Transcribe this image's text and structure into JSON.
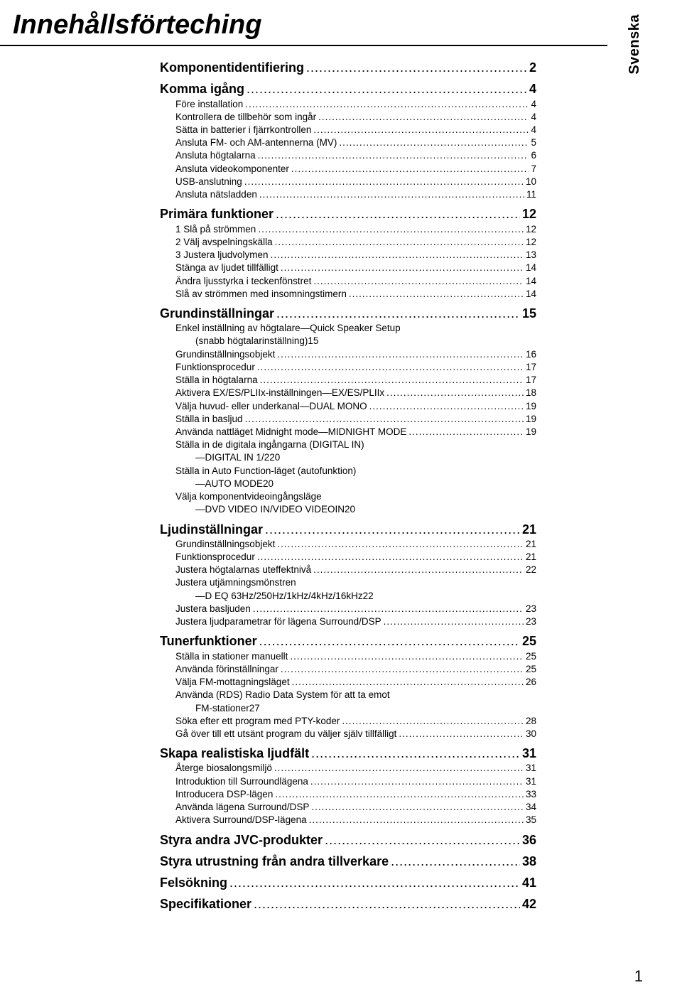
{
  "title": "Innehållsförteching",
  "side_label": "Svenska",
  "page_number": "1",
  "toc": [
    {
      "level": 1,
      "label": "Komponentidentifiering",
      "page": "2"
    },
    {
      "level": 1,
      "label": "Komma igång",
      "page": "4"
    },
    {
      "level": 2,
      "label": "Före installation",
      "page": "4"
    },
    {
      "level": 2,
      "label": "Kontrollera de tillbehör som ingår",
      "page": "4"
    },
    {
      "level": 2,
      "label": "Sätta in batterier i fjärrkontrollen",
      "page": "4"
    },
    {
      "level": 2,
      "label": "Ansluta FM- och AM-antennerna (MV)",
      "page": "5"
    },
    {
      "level": 2,
      "label": "Ansluta högtalarna",
      "page": "6"
    },
    {
      "level": 2,
      "label": "Ansluta videokomponenter",
      "page": "7"
    },
    {
      "level": 2,
      "label": "USB-anslutning",
      "page": "10"
    },
    {
      "level": 2,
      "label": "Ansluta nätsladden",
      "page": "11"
    },
    {
      "level": 1,
      "label": "Primära funktioner",
      "page": "12"
    },
    {
      "level": 2,
      "label": "1 Slå på strömmen",
      "page": "12"
    },
    {
      "level": 2,
      "label": "2 Välj avspelningskälla",
      "page": "12"
    },
    {
      "level": 2,
      "label": "3 Justera ljudvolymen",
      "page": "13"
    },
    {
      "level": 2,
      "label": "Stänga av ljudet tillfälligt",
      "page": "14"
    },
    {
      "level": 2,
      "label": "Ändra ljusstyrka i teckenfönstret",
      "page": "14"
    },
    {
      "level": 2,
      "label": "Slå av strömmen med insomningstimern",
      "page": "14"
    },
    {
      "level": 1,
      "label": "Grundinställningar",
      "page": "15"
    },
    {
      "level": 2,
      "wrap": true,
      "label1": "Enkel inställning av högtalare—Quick Speaker Setup",
      "label2": "(snabb högtalarinställning)",
      "page": "15"
    },
    {
      "level": 2,
      "label": "Grundinställningsobjekt",
      "page": "16"
    },
    {
      "level": 2,
      "label": "Funktionsprocedur",
      "page": "17"
    },
    {
      "level": 2,
      "label": "Ställa in högtalarna",
      "page": "17"
    },
    {
      "level": 2,
      "label": "Aktivera EX/ES/PLIIx-inställningen—EX/ES/PLIIx",
      "page": "18"
    },
    {
      "level": 2,
      "label": "Välja huvud- eller underkanal—DUAL MONO",
      "page": "19"
    },
    {
      "level": 2,
      "label": "Ställa in basljud",
      "page": "19"
    },
    {
      "level": 2,
      "label": "Använda nattläget Midnight mode—MIDNIGHT MODE",
      "page": "19"
    },
    {
      "level": 2,
      "wrap": true,
      "label1": "Ställa in de digitala ingångarna (DIGITAL IN)",
      "label2": "—DIGITAL IN 1/2",
      "page": "20"
    },
    {
      "level": 2,
      "wrap": true,
      "label1": "Ställa in Auto Function-läget (autofunktion)",
      "label2": "—AUTO MODE",
      "page": "20"
    },
    {
      "level": 2,
      "wrap": true,
      "label1": "Välja komponentvideoingångsläge",
      "label2": "—DVD VIDEO IN/VIDEO VIDEOIN",
      "page": "20"
    },
    {
      "level": 1,
      "label": "Ljudinställningar",
      "page": "21"
    },
    {
      "level": 2,
      "label": "Grundinställningsobjekt",
      "page": "21"
    },
    {
      "level": 2,
      "label": "Funktionsprocedur",
      "page": "21"
    },
    {
      "level": 2,
      "label": "Justera högtalarnas uteffektnivå",
      "page": "22"
    },
    {
      "level": 2,
      "wrap": true,
      "label1": "Justera utjämningsmönstren",
      "label2": "—D EQ 63Hz/250Hz/1kHz/4kHz/16kHz",
      "page": "22"
    },
    {
      "level": 2,
      "label": "Justera basljuden",
      "page": "23"
    },
    {
      "level": 2,
      "label": "Justera ljudparametrar för lägena Surround/DSP",
      "page": "23"
    },
    {
      "level": 1,
      "label": "Tunerfunktioner",
      "page": "25"
    },
    {
      "level": 2,
      "label": "Ställa in stationer manuellt",
      "page": "25"
    },
    {
      "level": 2,
      "label": "Använda förinställningar",
      "page": "25"
    },
    {
      "level": 2,
      "label": "Välja FM-mottagningsläget",
      "page": "26"
    },
    {
      "level": 2,
      "wrap": true,
      "label1": "Använda (RDS) Radio Data System för att ta emot",
      "label2": "FM-stationer",
      "page": "27"
    },
    {
      "level": 2,
      "label": "Söka efter ett program med PTY-koder",
      "page": "28"
    },
    {
      "level": 2,
      "label": "Gå över till ett utsänt program du väljer själv tillfälligt",
      "page": "30"
    },
    {
      "level": 1,
      "label": "Skapa realistiska ljudfält",
      "page": "31"
    },
    {
      "level": 2,
      "label": "Återge biosalongsmiljö",
      "page": "31"
    },
    {
      "level": 2,
      "label": "Introduktion till Surroundlägena",
      "page": "31"
    },
    {
      "level": 2,
      "label": "Introducera DSP-lägen",
      "page": "33"
    },
    {
      "level": 2,
      "label": "Använda lägena Surround/DSP",
      "page": "34"
    },
    {
      "level": 2,
      "label": "Aktivera Surround/DSP-lägena",
      "page": "35"
    },
    {
      "level": 1,
      "label": "Styra andra JVC-produkter",
      "page": "36"
    },
    {
      "level": 1,
      "label": "Styra utrustning från andra tillverkare",
      "page": "38"
    },
    {
      "level": 1,
      "label": "Felsökning",
      "page": "41"
    },
    {
      "level": 1,
      "label": "Specifikationer",
      "page": "42"
    }
  ]
}
